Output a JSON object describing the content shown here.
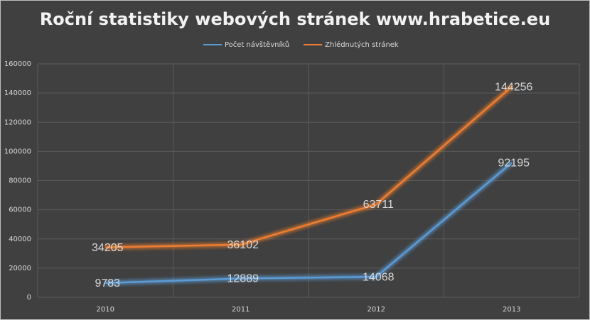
{
  "chart_data": {
    "type": "line",
    "title": "Roční statistiky webových stránek www.hrabetice.eu",
    "categories": [
      "2010",
      "2011",
      "2012",
      "2013"
    ],
    "series": [
      {
        "name": "Počet návštěvníků",
        "color": "#5b9bd5",
        "values": [
          9783,
          12889,
          14068,
          92195
        ]
      },
      {
        "name": "Zhlédnutých stránek",
        "color": "#ed7d31",
        "values": [
          34205,
          36102,
          63711,
          144256
        ]
      }
    ],
    "ylim": [
      0,
      160000
    ],
    "yticks": [
      0,
      20000,
      40000,
      60000,
      80000,
      100000,
      120000,
      140000,
      160000
    ],
    "grid": true
  }
}
